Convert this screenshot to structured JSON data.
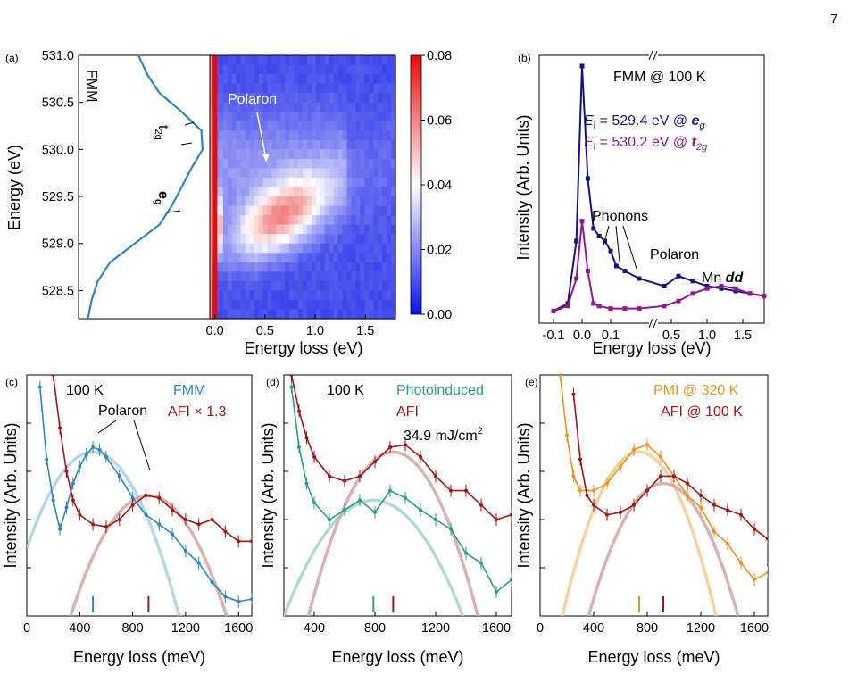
{
  "page_number": "7",
  "chart_data": [
    {
      "panel": "(a)",
      "type": "heatmap",
      "title": "",
      "ylabel": "Energy (eV)",
      "xlabel": "Energy loss (eV)",
      "ylim": [
        528.2,
        531.0
      ],
      "xlim": [
        -0.05,
        1.8
      ],
      "y_ticks": [
        "531.0",
        "530.5",
        "530.0",
        "529.5",
        "529.0",
        "528.5"
      ],
      "x_ticks": [
        "0.0",
        "0.5",
        "1.0",
        "1.5"
      ],
      "colorbar_ticks": [
        "0.08",
        "0.06",
        "0.04",
        "0.02",
        "0.00"
      ],
      "colorbar_range": [
        0.0,
        0.08
      ],
      "colorscale": [
        "#0a14e6",
        "#ffffff",
        "#e60a0a"
      ],
      "labels": {
        "fmm": "FMM",
        "polaron": "Polaron",
        "t2g": "t",
        "t2g_sub": "2g",
        "eg": "e",
        "eg_sub": "g"
      },
      "xas_profile": {
        "energy": [
          531.0,
          530.8,
          530.6,
          530.4,
          530.2,
          530.0,
          529.8,
          529.6,
          529.4,
          529.2,
          529.0,
          528.8,
          528.6,
          528.4,
          528.2
        ],
        "intensity": [
          0.45,
          0.52,
          0.62,
          0.8,
          0.96,
          0.97,
          0.88,
          0.8,
          0.72,
          0.62,
          0.42,
          0.22,
          0.12,
          0.07,
          0.04
        ]
      },
      "heatmap_features": [
        {
          "name": "elastic",
          "x": 0.0,
          "y_range": [
            528.2,
            531.0
          ],
          "value": 0.08
        },
        {
          "name": "polaron",
          "x_center": 0.6,
          "y_center": 529.25,
          "value": 0.05
        }
      ]
    },
    {
      "panel": "(b)",
      "type": "line",
      "title": "FMM @ 100 K",
      "xlabel": "Energy loss (eV)",
      "ylabel": "Intensity (Arb. Units)",
      "x_ticks": [
        "-0.1",
        "0.0",
        "0.1",
        "0.5",
        "1.0",
        "1.5"
      ],
      "axis_break": true,
      "annotations": [
        "Phonons",
        "Polaron",
        "Mn dd"
      ],
      "annotation_mn": "Mn ",
      "annotation_dd": "dd",
      "series": [
        {
          "name_e": "E",
          "name_sub": "i",
          "name_text": " = 529.4 eV @ ",
          "name_orb": "e",
          "name_orb_sub": "g",
          "color": "#141480",
          "x": [
            -0.1,
            -0.05,
            -0.02,
            0.0,
            0.02,
            0.04,
            0.06,
            0.08,
            0.1,
            0.12,
            0.15,
            0.2,
            0.4,
            0.6,
            0.8,
            1.0,
            1.2,
            1.4,
            1.6,
            1.8
          ],
          "y": [
            0.02,
            0.05,
            0.3,
            1.0,
            0.55,
            0.35,
            0.32,
            0.3,
            0.26,
            0.2,
            0.18,
            0.15,
            0.12,
            0.16,
            0.14,
            0.12,
            0.11,
            0.1,
            0.09,
            0.08
          ]
        },
        {
          "name_e": "E",
          "name_sub": "i",
          "name_text": " = 530.2 eV @ ",
          "name_orb": "t",
          "name_orb_sub": "2g",
          "color": "#8c1a8c",
          "x": [
            -0.1,
            -0.05,
            -0.02,
            0.0,
            0.02,
            0.04,
            0.06,
            0.1,
            0.15,
            0.2,
            0.4,
            0.6,
            0.8,
            1.0,
            1.2,
            1.4,
            1.6,
            1.8
          ],
          "y": [
            0.02,
            0.04,
            0.15,
            0.38,
            0.18,
            0.05,
            0.04,
            0.03,
            0.03,
            0.03,
            0.04,
            0.06,
            0.09,
            0.11,
            0.12,
            0.11,
            0.09,
            0.08
          ]
        }
      ]
    },
    {
      "panel": "(c)",
      "type": "line",
      "xlabel": "Energy loss (meV)",
      "ylabel": "Intensity (Arb. Units)",
      "xlim": [
        0,
        1700
      ],
      "x_ticks": [
        "0",
        "400",
        "800",
        "1200",
        "1600"
      ],
      "texts": {
        "temp": "100 K",
        "polaron": "Polaron"
      },
      "series": [
        {
          "name": "FMM",
          "color": "#2e86c1",
          "x": [
            100,
            150,
            200,
            250,
            300,
            350,
            400,
            450,
            500,
            550,
            600,
            700,
            800,
            900,
            1000,
            1100,
            1200,
            1300,
            1400,
            1500,
            1600,
            1700
          ],
          "y": [
            0.95,
            0.65,
            0.48,
            0.36,
            0.45,
            0.55,
            0.62,
            0.67,
            0.7,
            0.69,
            0.66,
            0.58,
            0.49,
            0.42,
            0.38,
            0.34,
            0.27,
            0.22,
            0.14,
            0.08,
            0.06,
            0.07
          ]
        },
        {
          "name": "AFI × 1.3",
          "color": "#a31515",
          "x": [
            200,
            250,
            300,
            350,
            400,
            500,
            600,
            700,
            800,
            900,
            1000,
            1100,
            1200,
            1300,
            1400,
            1500,
            1600,
            1700
          ],
          "y": [
            1.0,
            0.78,
            0.6,
            0.48,
            0.42,
            0.38,
            0.37,
            0.4,
            0.46,
            0.5,
            0.49,
            0.44,
            0.4,
            0.38,
            0.4,
            0.35,
            0.31,
            0.31
          ]
        }
      ],
      "fits": [
        {
          "color": "#a9cfe5",
          "center": 500,
          "sigma": 420,
          "amp": 0.68
        },
        {
          "color": "#d4a3a3",
          "center": 920,
          "sigma": 380,
          "amp": 0.5
        }
      ],
      "markers": [
        {
          "x": 500,
          "color": "#2e86c1"
        },
        {
          "x": 920,
          "color": "#a31515"
        }
      ]
    },
    {
      "panel": "(d)",
      "type": "line",
      "xlabel": "Energy loss (meV)",
      "ylabel": "Intensity (Arb. Units)",
      "xlim": [
        200,
        1700
      ],
      "x_ticks": [
        "400",
        "800",
        "1200",
        "1600"
      ],
      "texts": {
        "temp": "100 K",
        "fluence_value": "34.9 mJ/cm",
        "fluence_exp": "2"
      },
      "series": [
        {
          "name": "Photoinduced",
          "color": "#2a9d8f",
          "x": [
            250,
            300,
            350,
            400,
            500,
            600,
            700,
            800,
            900,
            1000,
            1100,
            1200,
            1300,
            1400,
            1500,
            1600,
            1700
          ],
          "y": [
            0.95,
            0.7,
            0.55,
            0.47,
            0.4,
            0.44,
            0.48,
            0.43,
            0.52,
            0.49,
            0.44,
            0.4,
            0.36,
            0.26,
            0.22,
            0.1,
            0.15
          ]
        },
        {
          "name": "AFI",
          "color": "#a31515",
          "x": [
            250,
            300,
            350,
            400,
            500,
            600,
            700,
            800,
            900,
            1000,
            1100,
            1200,
            1300,
            1400,
            1500,
            1600,
            1700
          ],
          "y": [
            1.0,
            0.85,
            0.74,
            0.66,
            0.58,
            0.56,
            0.58,
            0.64,
            0.7,
            0.71,
            0.66,
            0.58,
            0.52,
            0.52,
            0.46,
            0.4,
            0.42
          ]
        }
      ],
      "fits": [
        {
          "color": "#9fd3cc",
          "center": 790,
          "sigma": 380,
          "amp": 0.48
        },
        {
          "color": "#d4a3a3",
          "center": 920,
          "sigma": 360,
          "amp": 0.68
        }
      ],
      "markers": [
        {
          "x": 790,
          "color": "#2a9d8f"
        },
        {
          "x": 920,
          "color": "#a31515"
        }
      ]
    },
    {
      "panel": "(e)",
      "type": "line",
      "xlabel": "Energy loss (meV)",
      "ylabel": "Intensity (Arb. Units)",
      "xlim": [
        0,
        1700
      ],
      "x_ticks": [
        "0",
        "400",
        "800",
        "1200",
        "1600"
      ],
      "series": [
        {
          "name": "PMI @ 320 K",
          "color": "#f0901f",
          "x": [
            150,
            200,
            250,
            300,
            400,
            500,
            600,
            700,
            800,
            900,
            1000,
            1100,
            1200,
            1300,
            1400,
            1500,
            1600,
            1700
          ],
          "y": [
            1.0,
            0.75,
            0.58,
            0.52,
            0.52,
            0.55,
            0.62,
            0.69,
            0.71,
            0.66,
            0.58,
            0.5,
            0.45,
            0.35,
            0.3,
            0.22,
            0.15,
            0.18
          ]
        },
        {
          "name": "AFI @ 100 K",
          "color": "#a31515",
          "x": [
            250,
            300,
            350,
            400,
            500,
            600,
            700,
            800,
            900,
            1000,
            1100,
            1200,
            1300,
            1400,
            1500,
            1600,
            1700
          ],
          "y": [
            0.92,
            0.65,
            0.5,
            0.46,
            0.42,
            0.43,
            0.46,
            0.52,
            0.58,
            0.58,
            0.55,
            0.5,
            0.46,
            0.44,
            0.42,
            0.36,
            0.32
          ]
        }
      ],
      "fits": [
        {
          "color": "#f7c98d",
          "center": 740,
          "sigma": 370,
          "amp": 0.68
        },
        {
          "color": "#d4a3a3",
          "center": 920,
          "sigma": 360,
          "amp": 0.55
        }
      ],
      "markers": [
        {
          "x": 740,
          "color": "#f0901f"
        },
        {
          "x": 920,
          "color": "#a31515"
        }
      ]
    }
  ]
}
